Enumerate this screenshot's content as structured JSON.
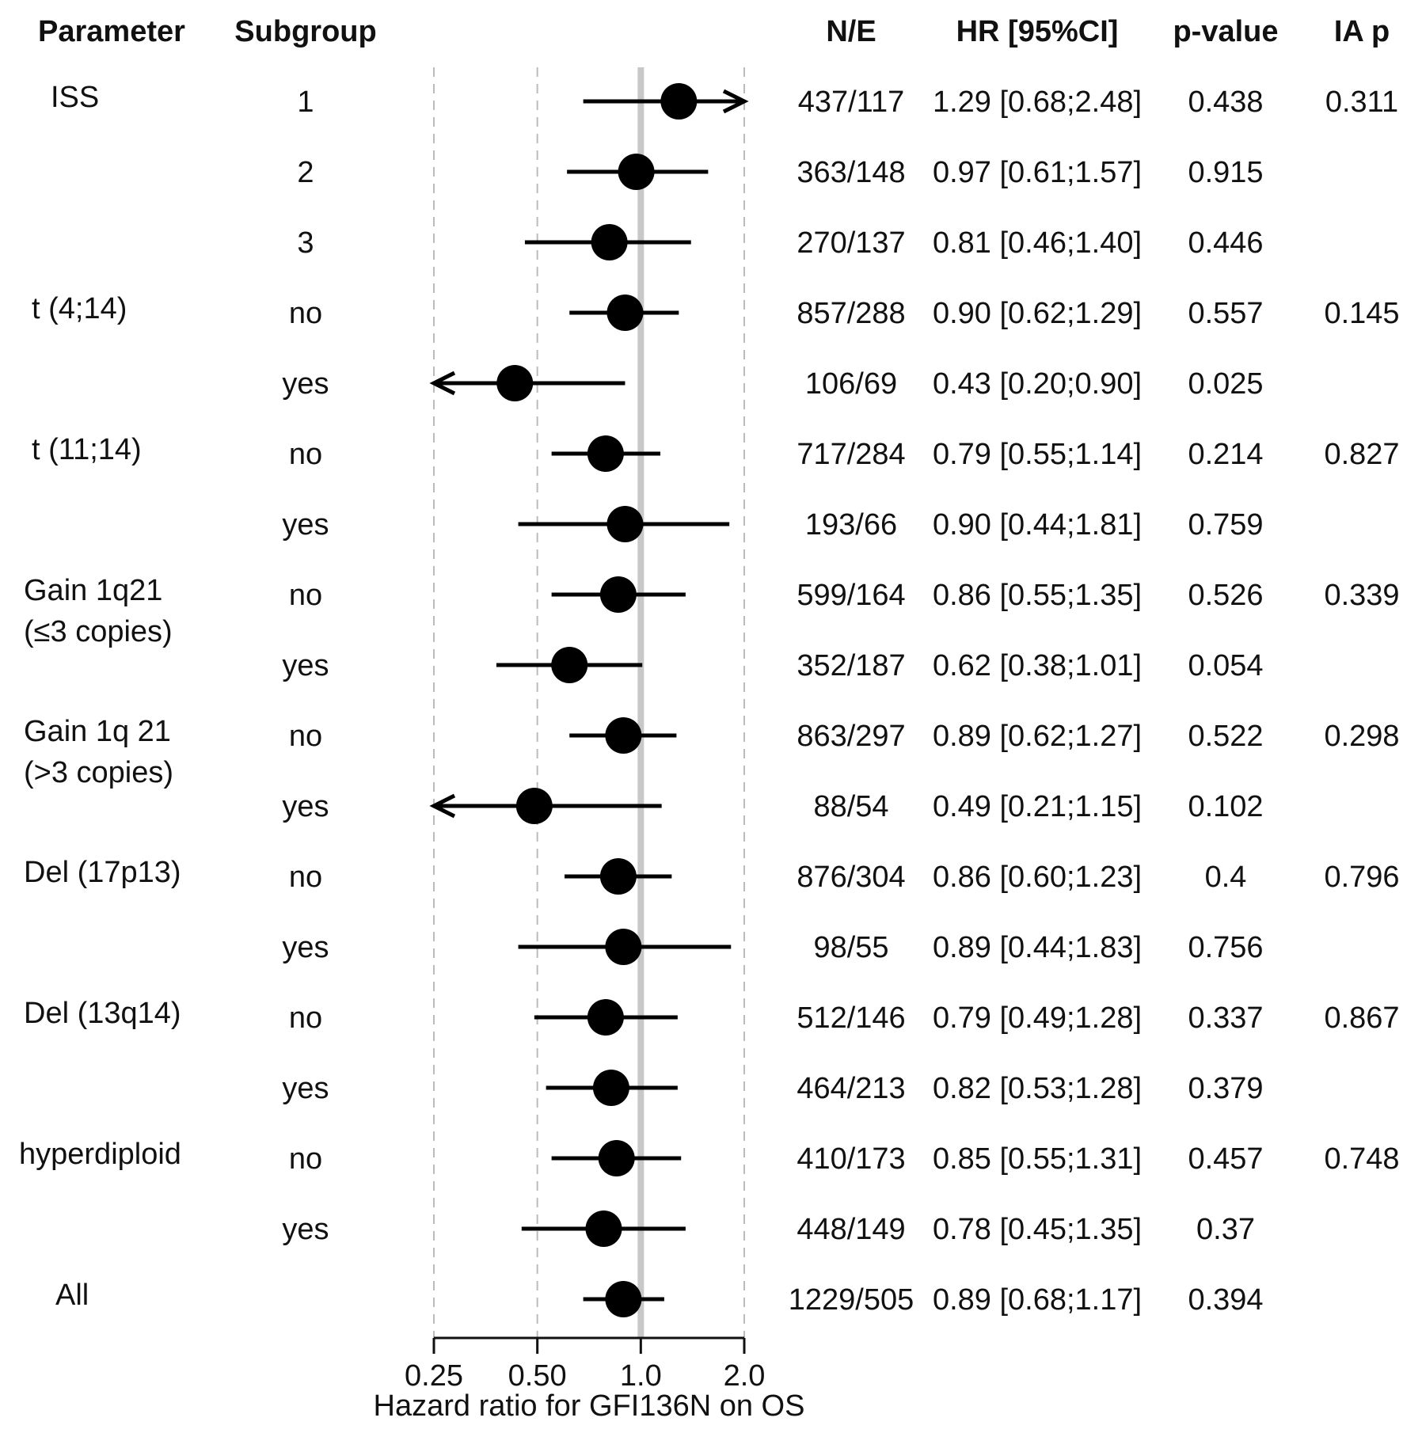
{
  "chart_data": {
    "type": "forest",
    "headers": {
      "parameter": "Parameter",
      "subgroup": "Subgroup",
      "ne": "N/E",
      "hr": "HR [95%CI]",
      "p": "p-value",
      "iap": "IA p"
    },
    "x_axis": {
      "label": "Hazard ratio for GFI136N on OS",
      "scale": "log2",
      "range": [
        0.25,
        2.0
      ],
      "ticks": [
        0.25,
        0.5,
        1.0,
        2.0
      ],
      "tick_labels": [
        "0.25",
        "0.50",
        "1.0",
        "2.0"
      ],
      "reference_line": 1.0
    },
    "params": [
      {
        "lines": [
          "ISS"
        ],
        "row": 0
      },
      {
        "lines": [
          "t (4;14)"
        ],
        "row": 3
      },
      {
        "lines": [
          "t (11;14)"
        ],
        "row": 5
      },
      {
        "lines": [
          "Gain 1q21",
          "(≤3 copies)"
        ],
        "row": 7
      },
      {
        "lines": [
          "Gain 1q 21",
          "(>3 copies)"
        ],
        "row": 9
      },
      {
        "lines": [
          "Del (17p13)"
        ],
        "row": 11
      },
      {
        "lines": [
          "Del (13q14)"
        ],
        "row": 13
      },
      {
        "lines": [
          "hyperdiploid"
        ],
        "row": 15
      },
      {
        "lines": [
          "All"
        ],
        "row": 17
      }
    ],
    "rows": [
      {
        "subgroup": "1",
        "ne": "437/117",
        "hr_text": "1.29 [0.68;2.48]",
        "p": "0.438",
        "iap": "0.311",
        "hr": 1.29,
        "lo": 0.68,
        "hi": 2.48
      },
      {
        "subgroup": "2",
        "ne": "363/148",
        "hr_text": "0.97 [0.61;1.57]",
        "p": "0.915",
        "iap": "",
        "hr": 0.97,
        "lo": 0.61,
        "hi": 1.57
      },
      {
        "subgroup": "3",
        "ne": "270/137",
        "hr_text": "0.81 [0.46;1.40]",
        "p": "0.446",
        "iap": "",
        "hr": 0.81,
        "lo": 0.46,
        "hi": 1.4
      },
      {
        "subgroup": "no",
        "ne": "857/288",
        "hr_text": "0.90 [0.62;1.29]",
        "p": "0.557",
        "iap": "0.145",
        "hr": 0.9,
        "lo": 0.62,
        "hi": 1.29
      },
      {
        "subgroup": "yes",
        "ne": "106/69",
        "hr_text": "0.43 [0.20;0.90]",
        "p": "0.025",
        "iap": "",
        "hr": 0.43,
        "lo": 0.2,
        "hi": 0.9
      },
      {
        "subgroup": "no",
        "ne": "717/284",
        "hr_text": "0.79 [0.55;1.14]",
        "p": "0.214",
        "iap": "0.827",
        "hr": 0.79,
        "lo": 0.55,
        "hi": 1.14
      },
      {
        "subgroup": "yes",
        "ne": "193/66",
        "hr_text": "0.90 [0.44;1.81]",
        "p": "0.759",
        "iap": "",
        "hr": 0.9,
        "lo": 0.44,
        "hi": 1.81
      },
      {
        "subgroup": "no",
        "ne": "599/164",
        "hr_text": "0.86 [0.55;1.35]",
        "p": "0.526",
        "iap": "0.339",
        "hr": 0.86,
        "lo": 0.55,
        "hi": 1.35
      },
      {
        "subgroup": "yes",
        "ne": "352/187",
        "hr_text": "0.62 [0.38;1.01]",
        "p": "0.054",
        "iap": "",
        "hr": 0.62,
        "lo": 0.38,
        "hi": 1.01
      },
      {
        "subgroup": "no",
        "ne": "863/297",
        "hr_text": "0.89 [0.62;1.27]",
        "p": "0.522",
        "iap": "0.298",
        "hr": 0.89,
        "lo": 0.62,
        "hi": 1.27
      },
      {
        "subgroup": "yes",
        "ne": "88/54",
        "hr_text": "0.49 [0.21;1.15]",
        "p": "0.102",
        "iap": "",
        "hr": 0.49,
        "lo": 0.21,
        "hi": 1.15
      },
      {
        "subgroup": "no",
        "ne": "876/304",
        "hr_text": "0.86 [0.60;1.23]",
        "p": "0.4",
        "iap": "0.796",
        "hr": 0.86,
        "lo": 0.6,
        "hi": 1.23
      },
      {
        "subgroup": "yes",
        "ne": "98/55",
        "hr_text": "0.89 [0.44;1.83]",
        "p": "0.756",
        "iap": "",
        "hr": 0.89,
        "lo": 0.44,
        "hi": 1.83
      },
      {
        "subgroup": "no",
        "ne": "512/146",
        "hr_text": "0.79 [0.49;1.28]",
        "p": "0.337",
        "iap": "0.867",
        "hr": 0.79,
        "lo": 0.49,
        "hi": 1.28
      },
      {
        "subgroup": "yes",
        "ne": "464/213",
        "hr_text": "0.82 [0.53;1.28]",
        "p": "0.379",
        "iap": "",
        "hr": 0.82,
        "lo": 0.53,
        "hi": 1.28
      },
      {
        "subgroup": "no",
        "ne": "410/173",
        "hr_text": "0.85 [0.55;1.31]",
        "p": "0.457",
        "iap": "0.748",
        "hr": 0.85,
        "lo": 0.55,
        "hi": 1.31
      },
      {
        "subgroup": "yes",
        "ne": "448/149",
        "hr_text": "0.78 [0.45;1.35]",
        "p": "0.37",
        "iap": "",
        "hr": 0.78,
        "lo": 0.45,
        "hi": 1.35
      },
      {
        "subgroup": "",
        "ne": "1229/505",
        "hr_text": "0.89 [0.68;1.17]",
        "p": "0.394",
        "iap": "",
        "hr": 0.89,
        "lo": 0.68,
        "hi": 1.17
      }
    ]
  }
}
